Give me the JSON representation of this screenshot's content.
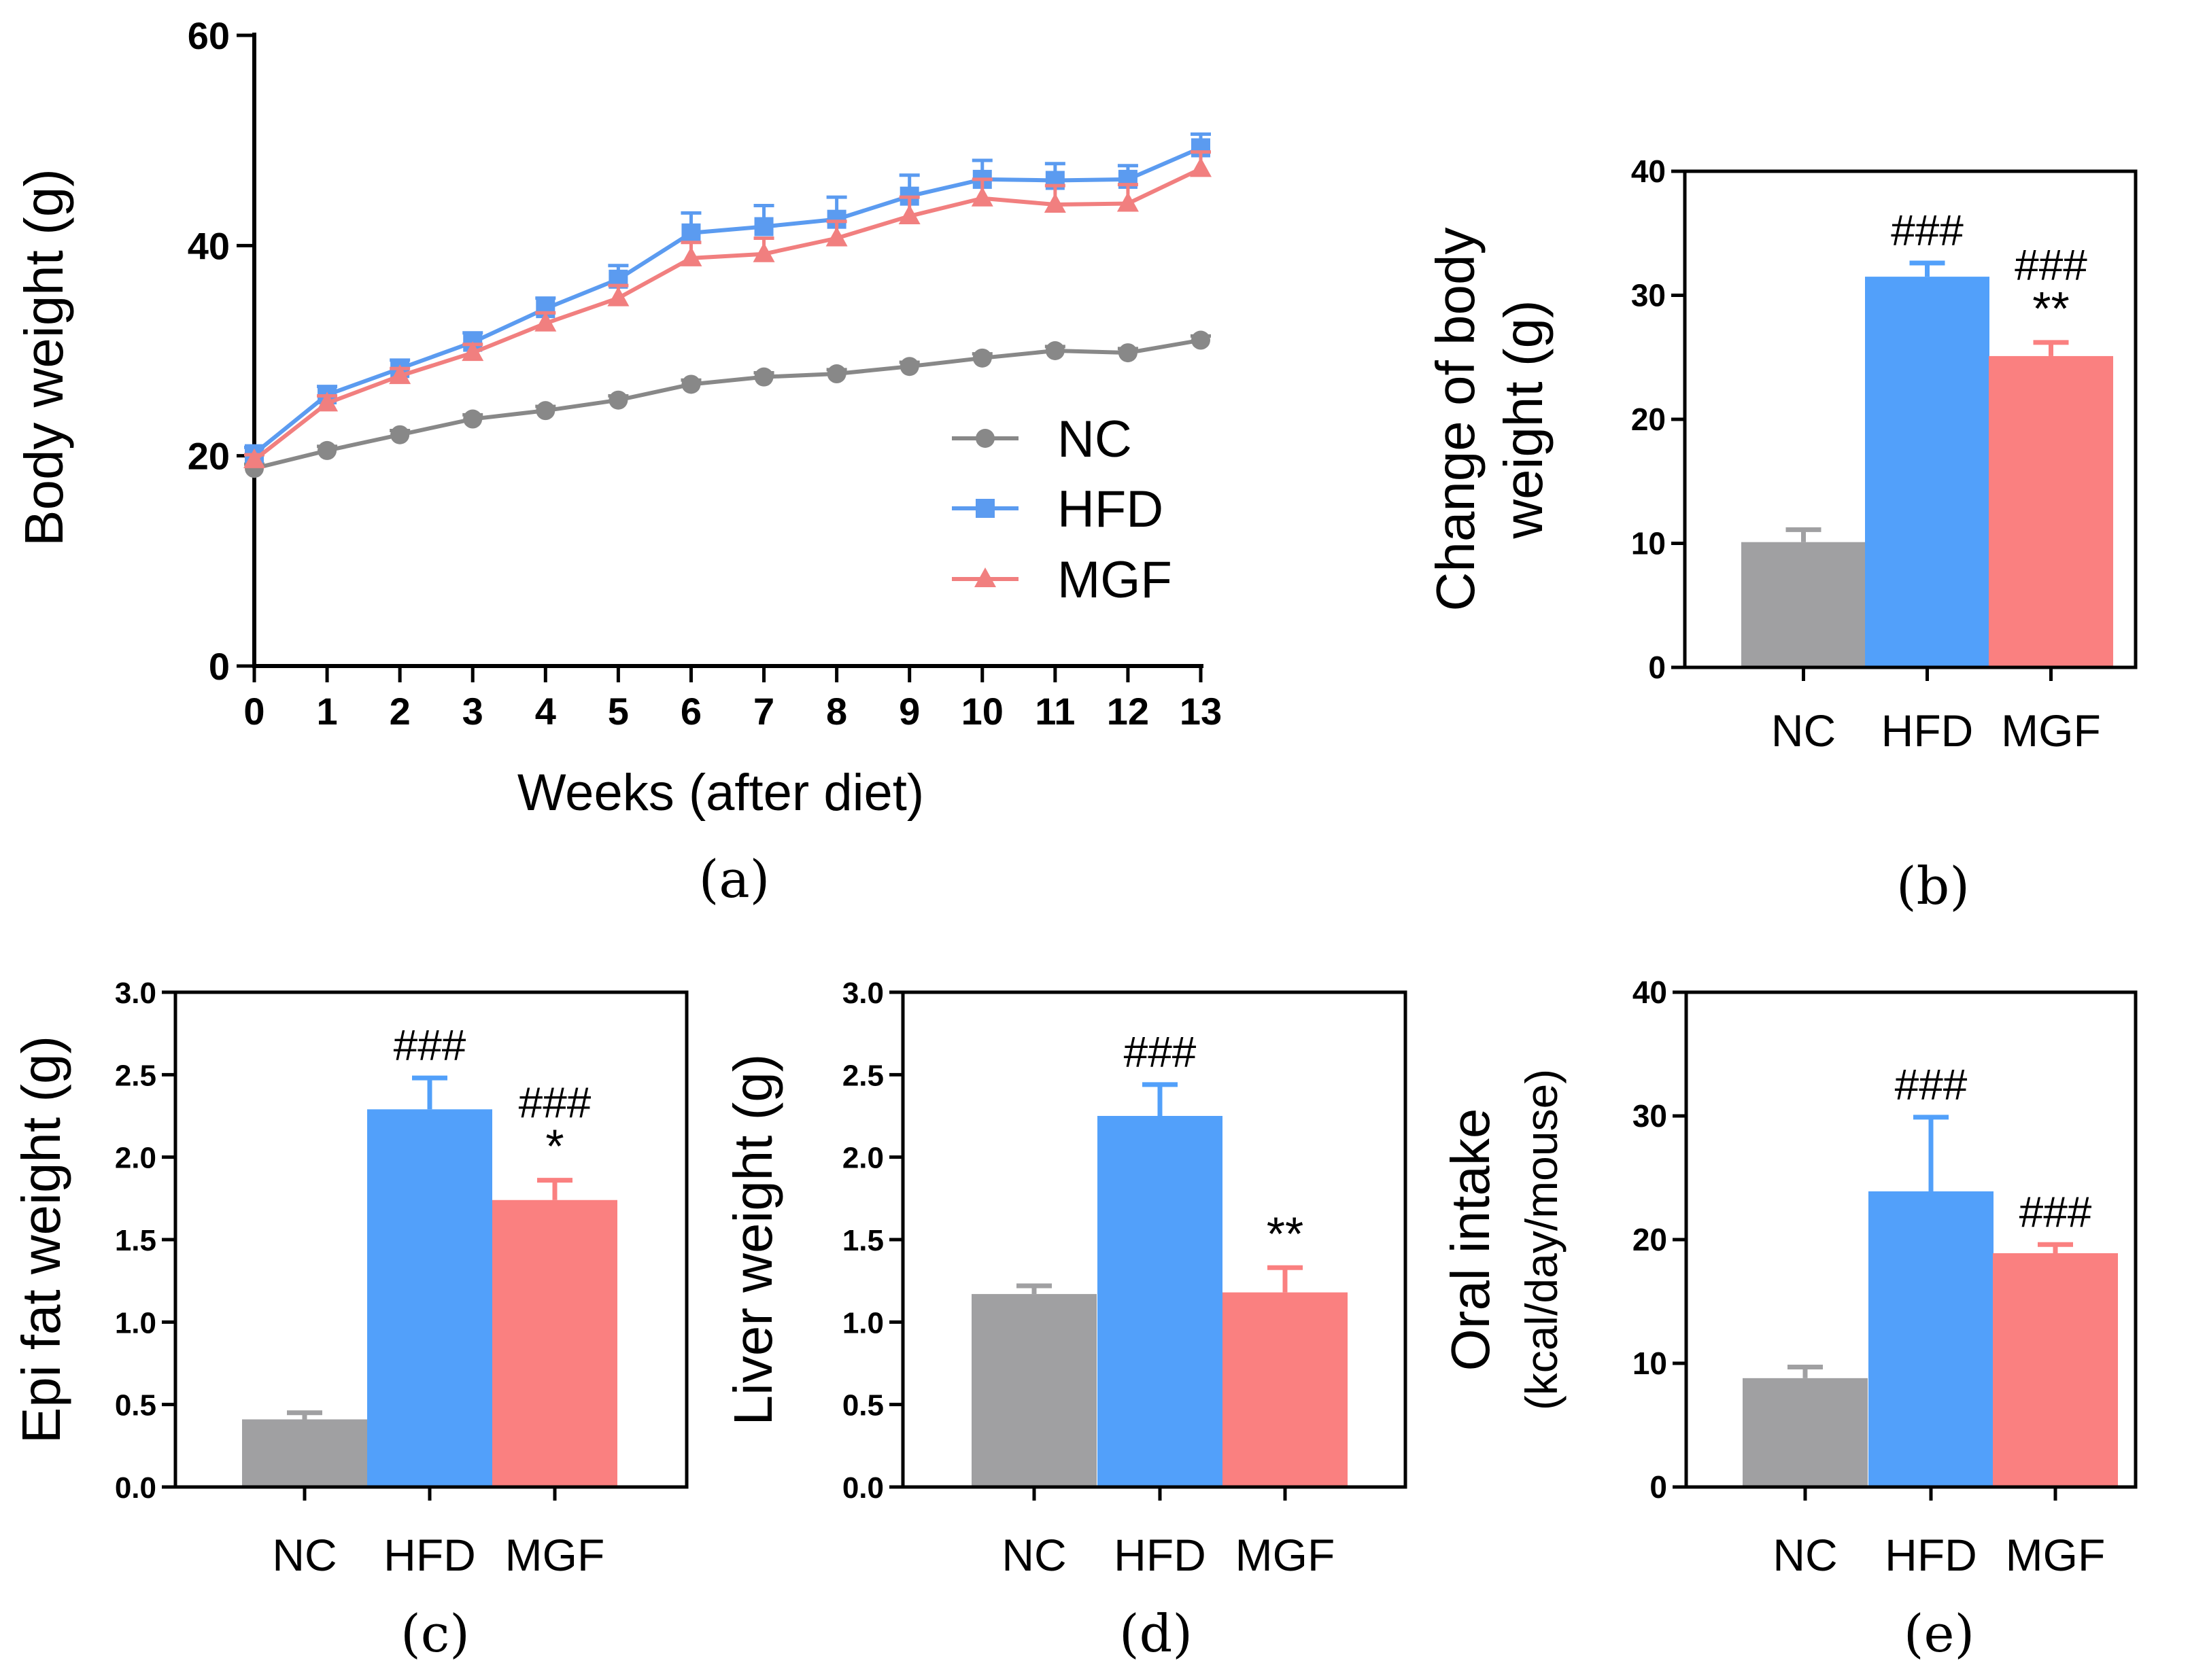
{
  "colors": {
    "NC": "#888888",
    "HFD": "#5b9bf0",
    "MGF": "#f17f7f",
    "NC_bar": "#a0a0a2",
    "HFD_bar": "#52a0fa",
    "MGF_bar": "#fa8080"
  },
  "chart_data": [
    {
      "id": "a",
      "type": "line",
      "panel_label": "(a)",
      "ylabel": "Body weight (g)",
      "xlabel": "Weeks (after diet)",
      "ylim": [
        0,
        60
      ],
      "yticks": [
        0,
        20,
        40,
        60
      ],
      "x": [
        0,
        1,
        2,
        3,
        4,
        5,
        6,
        7,
        8,
        9,
        10,
        11,
        12,
        13
      ],
      "legend": [
        "NC",
        "HFD",
        "MGF"
      ],
      "series": [
        {
          "name": "NC",
          "marker": "circle",
          "values": [
            18.8,
            20.5,
            22.0,
            23.5,
            24.3,
            25.3,
            26.8,
            27.5,
            27.8,
            28.5,
            29.3,
            30.0,
            29.8,
            31.0
          ],
          "errors": [
            0.4,
            0.4,
            0.4,
            0.4,
            0.4,
            0.4,
            0.4,
            0.4,
            0.4,
            0.4,
            0.4,
            0.4,
            0.4,
            0.4
          ]
        },
        {
          "name": "HFD",
          "marker": "square",
          "values": [
            20.2,
            25.8,
            28.3,
            30.8,
            34.0,
            36.8,
            41.2,
            41.8,
            42.5,
            44.7,
            46.3,
            46.2,
            46.3,
            49.3
          ],
          "errors": [
            0.6,
            0.8,
            0.8,
            0.9,
            1.0,
            1.3,
            1.9,
            2.0,
            2.1,
            2.0,
            1.8,
            1.6,
            1.3,
            1.3
          ]
        },
        {
          "name": "MGF",
          "marker": "triangle",
          "values": [
            19.6,
            25.0,
            27.6,
            29.8,
            32.6,
            35.0,
            38.8,
            39.2,
            40.7,
            42.8,
            44.5,
            43.9,
            44.0,
            47.3
          ],
          "errors": [
            0.5,
            0.7,
            0.7,
            0.8,
            1.0,
            1.2,
            1.5,
            1.5,
            1.6,
            1.8,
            1.8,
            1.8,
            1.8,
            1.6
          ]
        }
      ]
    },
    {
      "id": "b",
      "type": "bar",
      "panel_label": "(b)",
      "ylabel_lines": [
        "Change of body",
        "weight (g)"
      ],
      "categories": [
        "NC",
        "HFD",
        "MGF"
      ],
      "values": [
        10.1,
        31.5,
        25.1
      ],
      "errors": [
        1.0,
        1.1,
        1.1
      ],
      "ylim": [
        0,
        40
      ],
      "yticks": [
        0,
        10,
        20,
        30,
        40
      ],
      "annotations": [
        [],
        [
          "###"
        ],
        [
          "###",
          "**"
        ]
      ]
    },
    {
      "id": "c",
      "type": "bar",
      "panel_label": "(c)",
      "ylabel_lines": [
        "Epi fat weight (g)"
      ],
      "categories": [
        "NC",
        "HFD",
        "MGF"
      ],
      "values": [
        0.41,
        2.29,
        1.74
      ],
      "errors": [
        0.04,
        0.19,
        0.12
      ],
      "ylim": [
        0,
        3.0
      ],
      "yticks": [
        "0.0",
        "0.5",
        "1.0",
        "1.5",
        "2.0",
        "2.5",
        "3.0"
      ],
      "annotations": [
        [],
        [
          "###"
        ],
        [
          "###",
          "*"
        ]
      ]
    },
    {
      "id": "d",
      "type": "bar",
      "panel_label": "(d)",
      "ylabel_lines": [
        "Liver weight (g)"
      ],
      "categories": [
        "NC",
        "HFD",
        "MGF"
      ],
      "values": [
        1.17,
        2.25,
        1.18
      ],
      "errors": [
        0.05,
        0.19,
        0.15
      ],
      "ylim": [
        0,
        3.0
      ],
      "yticks": [
        "0.0",
        "0.5",
        "1.0",
        "1.5",
        "2.0",
        "2.5",
        "3.0"
      ],
      "annotations": [
        [],
        [
          "###"
        ],
        [
          "**"
        ]
      ]
    },
    {
      "id": "e",
      "type": "bar",
      "panel_label": "(e)",
      "ylabel_lines": [
        "Oral intake",
        "(kcal/day/mouse)"
      ],
      "categories": [
        "NC",
        "HFD",
        "MGF"
      ],
      "values": [
        8.8,
        23.9,
        18.9
      ],
      "errors": [
        0.9,
        6.0,
        0.7
      ],
      "ylim": [
        0,
        40
      ],
      "yticks": [
        0,
        10,
        20,
        30,
        40
      ],
      "annotations": [
        [],
        [
          "###"
        ],
        [
          "###"
        ]
      ]
    }
  ]
}
